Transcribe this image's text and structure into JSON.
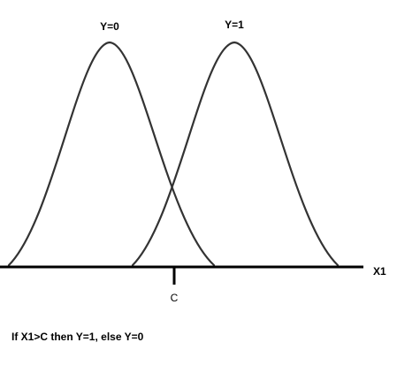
{
  "diagram": {
    "curve_labels": [
      "Y=0",
      "Y=1"
    ],
    "axis_label": "X1",
    "threshold_label": "C",
    "rule_text": "If X1>C then Y=1, else Y=0"
  }
}
